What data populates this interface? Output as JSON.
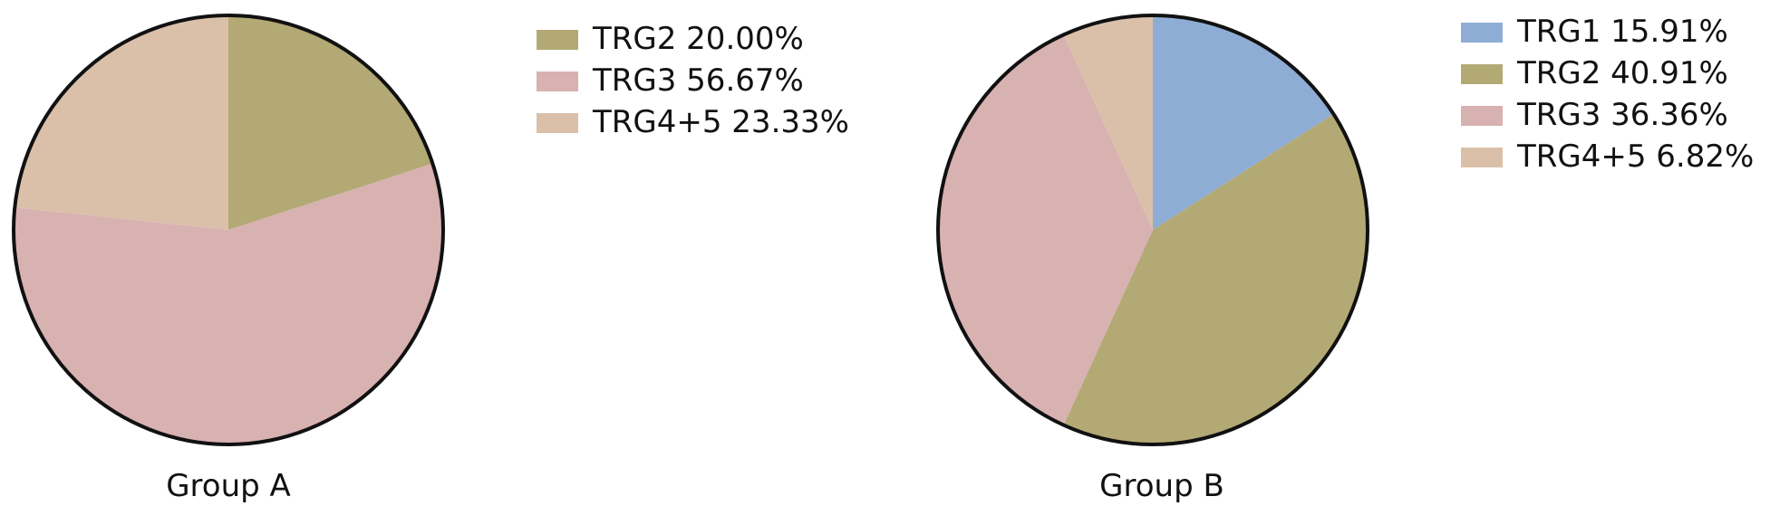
{
  "chart_data": [
    {
      "type": "pie",
      "title": "",
      "group_label": "Group A",
      "legend_position": "right",
      "start": "top",
      "direction": "clockwise",
      "slices": [
        {
          "name": "TRG2",
          "value": 20.0,
          "label": "TRG2 20.00%",
          "color": "#b3a975"
        },
        {
          "name": "TRG3",
          "value": 56.67,
          "label": "TRG3 56.67%",
          "color": "#d8b1b1"
        },
        {
          "name": "TRG4+5",
          "value": 23.33,
          "label": "TRG4+5 23.33%",
          "color": "#dbc0a9"
        }
      ]
    },
    {
      "type": "pie",
      "title": "",
      "group_label": "Group B",
      "legend_position": "right",
      "start": "top",
      "direction": "clockwise",
      "slices": [
        {
          "name": "TRG1",
          "value": 15.91,
          "label": "TRG1 15.91%",
          "color": "#8eadd5"
        },
        {
          "name": "TRG2",
          "value": 40.91,
          "label": "TRG2 40.91%",
          "color": "#b3a975"
        },
        {
          "name": "TRG3",
          "value": 36.36,
          "label": "TRG3 36.36%",
          "color": "#d8b1b1"
        },
        {
          "name": "TRG4+5",
          "value": 6.82,
          "label": "TRG4+5 6.82%",
          "color": "#dbc0a9"
        }
      ]
    }
  ]
}
